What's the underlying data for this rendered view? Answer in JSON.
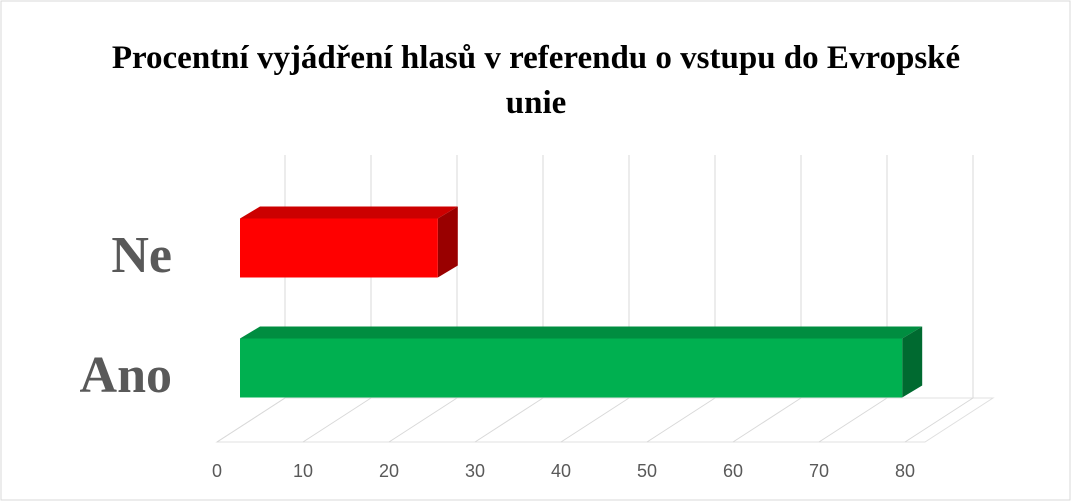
{
  "chart_data": {
    "type": "bar3d",
    "title": "Procentní vyjádření hlasů v referendu o vstupu do Evropské unie",
    "categories": [
      "Ano",
      "Ne"
    ],
    "values": [
      77,
      23
    ],
    "colors": [
      "#00b050",
      "#ff0000"
    ],
    "xlim": [
      0,
      80
    ],
    "xticks": [
      0,
      10,
      20,
      30,
      40,
      50,
      60,
      70,
      80
    ],
    "grid": true
  }
}
